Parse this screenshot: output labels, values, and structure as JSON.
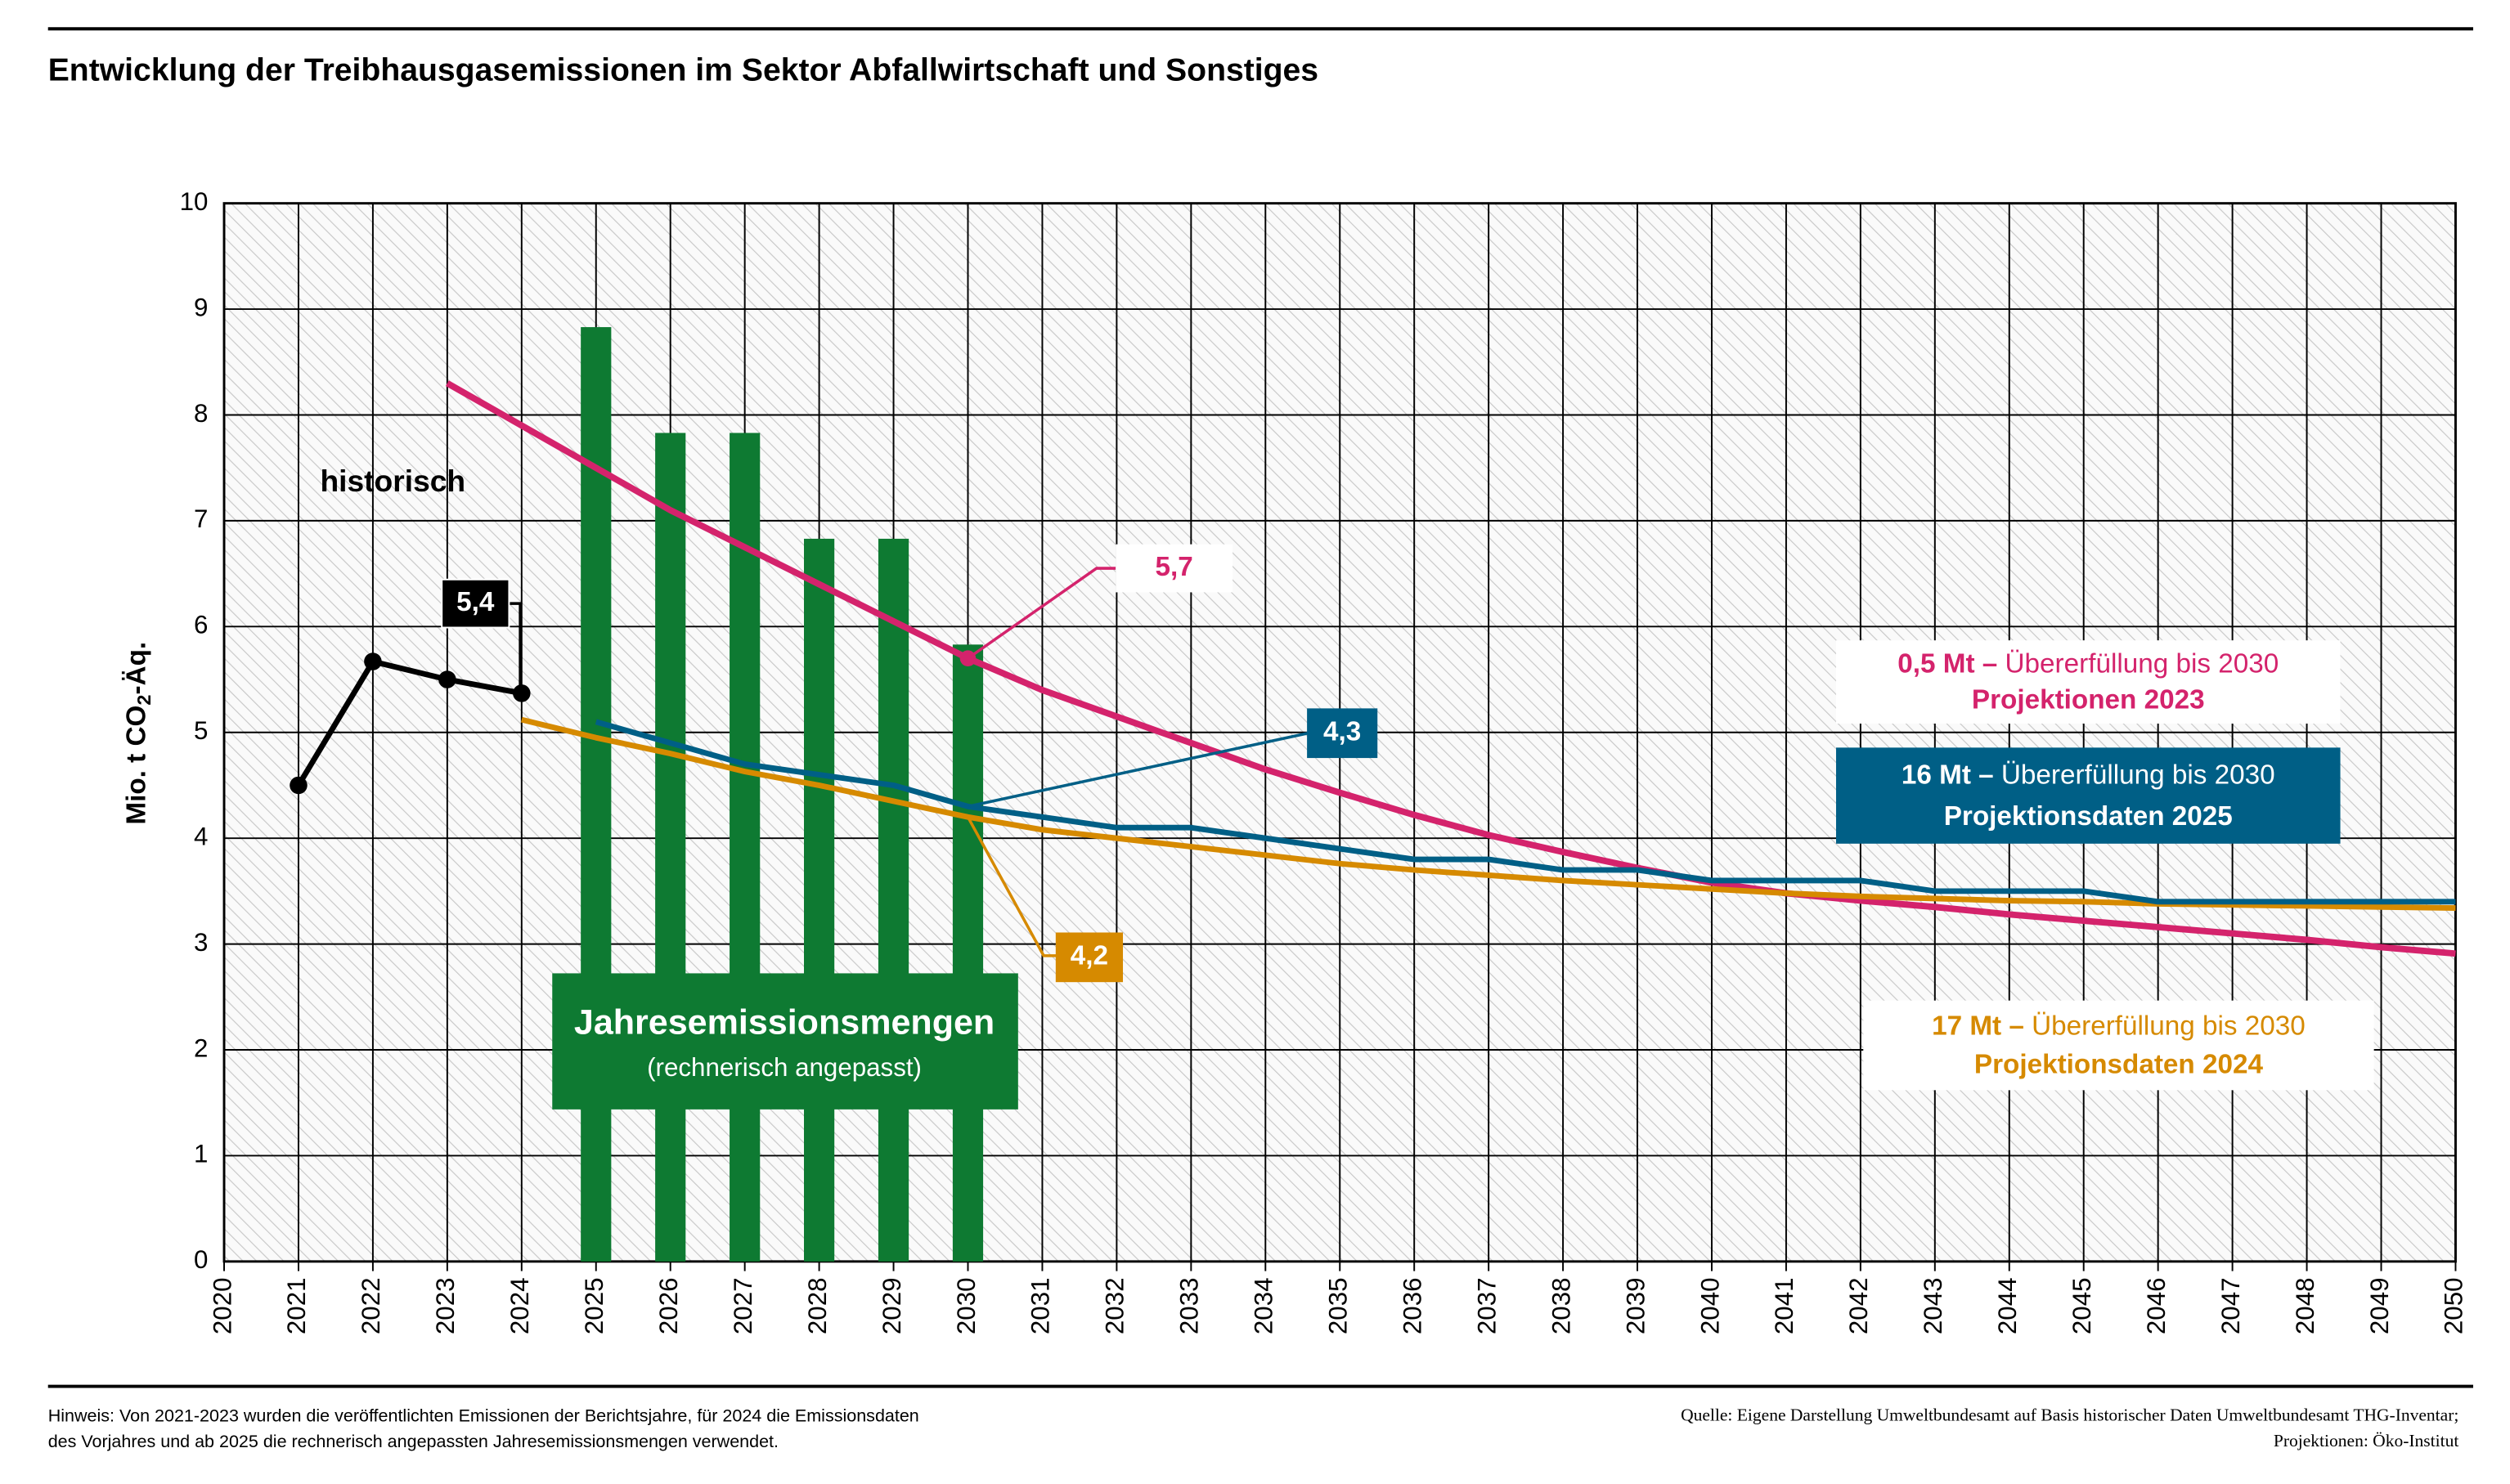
{
  "chart_data": {
    "type": "line",
    "title": "Entwicklung der Treibhausgasemissionen im Sektor Abfallwirtschaft und Sonstiges",
    "ylabel": {
      "main": "Mio. t CO",
      "sub": "2",
      "end": "-Äq."
    },
    "x": [
      2020,
      2021,
      2022,
      2023,
      2024,
      2025,
      2026,
      2027,
      2028,
      2029,
      2030,
      2031,
      2032,
      2033,
      2034,
      2035,
      2036,
      2037,
      2038,
      2039,
      2040,
      2041,
      2042,
      2043,
      2044,
      2045,
      2046,
      2047,
      2048,
      2049,
      2050
    ],
    "xlim": [
      2020,
      2050
    ],
    "ylim": [
      0,
      10
    ],
    "yticks": [
      0,
      1,
      2,
      3,
      4,
      5,
      6,
      7,
      8,
      9,
      10
    ],
    "grid": true,
    "series": [
      {
        "type": "bar",
        "name": "Jahresemissionsmengen",
        "note": "(rechnerisch angepasst)",
        "color": "#0e7a32",
        "values": [
          null,
          null,
          null,
          null,
          null,
          8.83,
          7.83,
          7.83,
          6.83,
          6.83,
          5.83,
          null,
          null,
          null,
          null,
          null,
          null,
          null,
          null,
          null,
          null,
          null,
          null,
          null,
          null,
          null,
          null,
          null,
          null,
          null,
          null
        ]
      },
      {
        "type": "line",
        "name": "historisch",
        "color": "#000000",
        "values": [
          null,
          4.5,
          5.67,
          5.5,
          5.37,
          null,
          null,
          null,
          null,
          null,
          null,
          null,
          null,
          null,
          null,
          null,
          null,
          null,
          null,
          null,
          null,
          null,
          null,
          null,
          null,
          null,
          null,
          null,
          null,
          null,
          null
        ],
        "value_labels": [
          null,
          null,
          null,
          null,
          "5,4",
          null,
          null,
          null,
          null,
          null,
          null,
          null,
          null,
          null,
          null,
          null,
          null,
          null,
          null,
          null,
          null,
          null,
          null,
          null,
          null,
          null,
          null,
          null,
          null,
          null,
          null
        ]
      },
      {
        "type": "line",
        "name": "Projektionen 2023",
        "note_bold": "0,5 Mt –",
        "note": "Übererfüllung bis 2030",
        "color": "#d4236c",
        "values": [
          null,
          null,
          null,
          8.3,
          7.9,
          7.5,
          7.1,
          6.75,
          6.4,
          6.05,
          5.7,
          5.4,
          5.15,
          4.9,
          4.65,
          4.43,
          4.22,
          4.03,
          3.87,
          3.72,
          3.58,
          3.48,
          3.41,
          3.35,
          3.28,
          3.22,
          3.16,
          3.1,
          3.04,
          2.97,
          2.91
        ],
        "value_labels": [
          null,
          null,
          null,
          null,
          null,
          null,
          null,
          null,
          null,
          null,
          "5,7",
          null,
          null,
          null,
          null,
          null,
          null,
          null,
          null,
          null,
          null,
          null,
          null,
          null,
          null,
          null,
          null,
          null,
          null,
          null,
          null
        ]
      },
      {
        "type": "line",
        "name": "Projektionsdaten 2025",
        "note_bold": "16 Mt –",
        "note": "Übererfüllung bis 2030",
        "color": "#005f86",
        "values": [
          null,
          null,
          null,
          null,
          null,
          5.1,
          4.9,
          4.7,
          4.6,
          4.5,
          4.3,
          4.2,
          4.1,
          4.1,
          4.0,
          3.9,
          3.8,
          3.8,
          3.7,
          3.7,
          3.6,
          3.6,
          3.6,
          3.5,
          3.5,
          3.5,
          3.4,
          3.4,
          3.4,
          3.4,
          3.4
        ],
        "value_labels": [
          null,
          null,
          null,
          null,
          null,
          null,
          null,
          null,
          null,
          null,
          "4,3",
          null,
          null,
          null,
          null,
          null,
          null,
          null,
          null,
          null,
          null,
          null,
          null,
          null,
          null,
          null,
          null,
          null,
          null,
          null,
          null
        ]
      },
      {
        "type": "line",
        "name": "Projektionsdaten 2024",
        "note_bold": "17 Mt –",
        "note": "Übererfüllung bis 2030",
        "color": "#d68a00",
        "values": [
          null,
          null,
          null,
          null,
          5.12,
          4.95,
          4.8,
          4.63,
          4.5,
          4.35,
          4.2,
          4.08,
          4.0,
          3.92,
          3.84,
          3.76,
          3.7,
          3.65,
          3.6,
          3.56,
          3.52,
          3.48,
          3.45,
          3.43,
          3.41,
          3.4,
          3.38,
          3.37,
          3.36,
          3.35,
          3.34
        ],
        "value_labels": [
          null,
          null,
          null,
          null,
          null,
          null,
          null,
          null,
          null,
          null,
          "4,2",
          null,
          null,
          null,
          null,
          null,
          null,
          null,
          null,
          null,
          null,
          null,
          null,
          null,
          null,
          null,
          null,
          null,
          null,
          null,
          null
        ]
      }
    ],
    "footnote": [
      "Hinweis: Von 2021-2023 wurden die veröffentlichten Emissionen der Berichtsjahre, für 2024 die Emissionsdaten",
      "des Vorjahres und ab 2025 die rechnerisch angepassten Jahresemissionsmengen verwendet."
    ],
    "source": [
      "Quelle: Eigene Darstellung Umweltbundesamt auf Basis historischer Daten Umweltbundesamt THG-Inventar;",
      "Projektionen: Öko-Institut"
    ]
  }
}
